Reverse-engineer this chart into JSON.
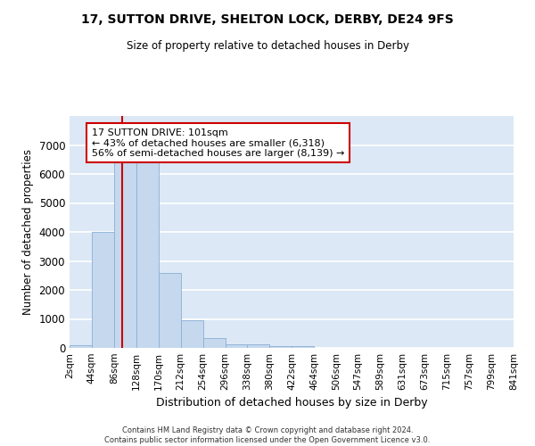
{
  "title1": "17, SUTTON DRIVE, SHELTON LOCK, DERBY, DE24 9FS",
  "title2": "Size of property relative to detached houses in Derby",
  "xlabel": "Distribution of detached houses by size in Derby",
  "ylabel": "Number of detached properties",
  "bar_color": "#c5d8ee",
  "bar_edge_color": "#8ab0d4",
  "background_color": "#dce8f5",
  "grid_color": "#ffffff",
  "annotation_text": "17 SUTTON DRIVE: 101sqm\n← 43% of detached houses are smaller (6,318)\n56% of semi-detached houses are larger (8,139) →",
  "annotation_box_color": "#ffffff",
  "annotation_box_edge_color": "#cc0000",
  "vline_x": 101,
  "vline_color": "#cc0000",
  "footer": "Contains HM Land Registry data © Crown copyright and database right 2024.\nContains public sector information licensed under the Open Government Licence v3.0.",
  "bin_edges": [
    2,
    44,
    86,
    128,
    170,
    212,
    254,
    296,
    338,
    380,
    422,
    464,
    506,
    547,
    589,
    631,
    673,
    715,
    757,
    799,
    841
  ],
  "bar_heights": [
    80,
    4000,
    6600,
    6550,
    2600,
    950,
    330,
    130,
    110,
    70,
    60,
    0,
    0,
    0,
    0,
    0,
    0,
    0,
    0,
    0
  ],
  "ylim": [
    0,
    8000
  ],
  "yticks": [
    0,
    1000,
    2000,
    3000,
    4000,
    5000,
    6000,
    7000
  ]
}
